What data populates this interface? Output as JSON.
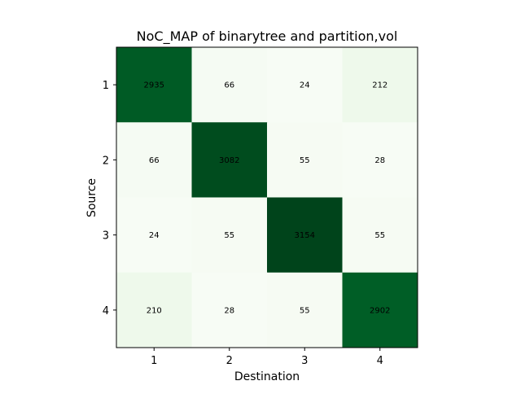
{
  "chart_data": {
    "type": "heatmap",
    "title": "NoC_MAP of binarytree and partition,vol",
    "xlabel": "Destination",
    "ylabel": "Source",
    "x_categories": [
      "1",
      "2",
      "3",
      "4"
    ],
    "y_categories": [
      "1",
      "2",
      "3",
      "4"
    ],
    "values": [
      [
        2935,
        66,
        24,
        212
      ],
      [
        66,
        3082,
        55,
        28
      ],
      [
        24,
        55,
        3154,
        55
      ],
      [
        210,
        28,
        55,
        2902
      ]
    ],
    "colormap": "Greens",
    "value_range": [
      24,
      3154
    ],
    "colors": {
      "low": "#f7fcf5",
      "high": "#00441b"
    }
  }
}
